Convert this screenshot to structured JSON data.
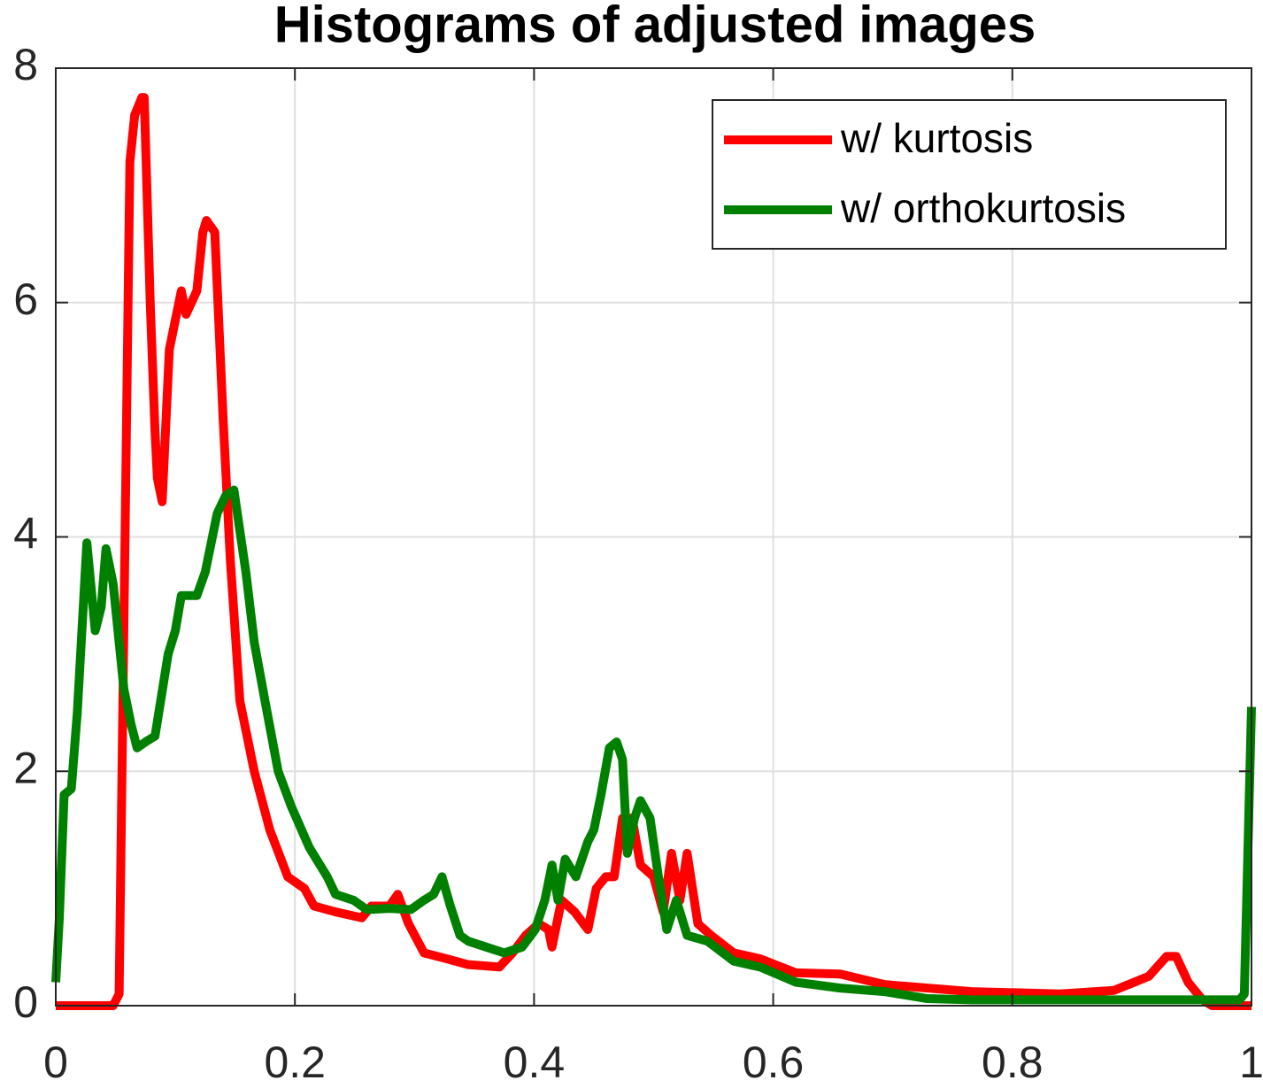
{
  "chart_data": {
    "type": "line",
    "title": "Histograms of adjusted images",
    "xlim": [
      0,
      1
    ],
    "ylim": [
      0,
      8
    ],
    "xticks": [
      0,
      0.2,
      0.4,
      0.6,
      0.8,
      1
    ],
    "yticks": [
      0,
      2,
      4,
      6,
      8
    ],
    "grid": true,
    "legend": "northeast",
    "series": [
      {
        "name": "w/ kurtosis",
        "color": "#ff0000",
        "x": [
          0,
          0.048,
          0.053,
          0.062,
          0.066,
          0.072,
          0.074,
          0.079,
          0.083,
          0.085,
          0.089,
          0.095,
          0.105,
          0.109,
          0.118,
          0.123,
          0.126,
          0.133,
          0.14,
          0.146,
          0.154,
          0.166,
          0.179,
          0.194,
          0.208,
          0.216,
          0.234,
          0.256,
          0.264,
          0.279,
          0.286,
          0.295,
          0.308,
          0.327,
          0.345,
          0.371,
          0.382,
          0.393,
          0.404,
          0.412,
          0.415,
          0.423,
          0.434,
          0.445,
          0.452,
          0.46,
          0.467,
          0.474,
          0.482,
          0.489,
          0.5,
          0.508,
          0.515,
          0.522,
          0.528,
          0.537,
          0.548,
          0.567,
          0.589,
          0.619,
          0.656,
          0.693,
          0.729,
          0.766,
          0.84,
          0.885,
          0.914,
          0.929,
          0.937,
          0.947,
          0.959,
          0.967,
          1
        ],
        "values": [
          0,
          0,
          0.1,
          7.2,
          7.6,
          7.75,
          7.75,
          6.0,
          4.9,
          4.5,
          4.3,
          5.6,
          6.1,
          5.9,
          6.1,
          6.6,
          6.7,
          6.6,
          5.0,
          3.8,
          2.6,
          2.0,
          1.5,
          1.1,
          1.0,
          0.85,
          0.8,
          0.75,
          0.85,
          0.85,
          0.95,
          0.7,
          0.45,
          0.4,
          0.35,
          0.33,
          0.45,
          0.6,
          0.7,
          0.65,
          0.5,
          0.9,
          0.8,
          0.65,
          1.0,
          1.1,
          1.1,
          1.6,
          1.6,
          1.2,
          1.1,
          0.8,
          1.3,
          0.9,
          1.3,
          0.7,
          0.6,
          0.45,
          0.4,
          0.28,
          0.27,
          0.18,
          0.15,
          0.12,
          0.1,
          0.13,
          0.25,
          0.42,
          0.42,
          0.2,
          0.05,
          0,
          0
        ]
      },
      {
        "name": "w/ orthokurtosis",
        "color": "#008000",
        "x": [
          0,
          0.003,
          0.007,
          0.013,
          0.018,
          0.026,
          0.033,
          0.038,
          0.042,
          0.048,
          0.057,
          0.063,
          0.068,
          0.075,
          0.083,
          0.094,
          0.1,
          0.105,
          0.112,
          0.118,
          0.125,
          0.135,
          0.142,
          0.149,
          0.159,
          0.166,
          0.175,
          0.186,
          0.197,
          0.212,
          0.227,
          0.234,
          0.249,
          0.26,
          0.279,
          0.297,
          0.308,
          0.316,
          0.323,
          0.33,
          0.338,
          0.345,
          0.36,
          0.375,
          0.39,
          0.401,
          0.409,
          0.415,
          0.42,
          0.426,
          0.435,
          0.445,
          0.45,
          0.456,
          0.463,
          0.469,
          0.474,
          0.478,
          0.484,
          0.489,
          0.497,
          0.504,
          0.511,
          0.519,
          0.528,
          0.545,
          0.567,
          0.589,
          0.619,
          0.656,
          0.693,
          0.729,
          0.766,
          0.84,
          0.914,
          0.99,
          0.994,
          1
        ],
        "values": [
          0.2,
          0.75,
          1.8,
          1.85,
          2.5,
          3.95,
          3.2,
          3.4,
          3.9,
          3.6,
          2.7,
          2.4,
          2.2,
          2.25,
          2.3,
          3.0,
          3.2,
          3.5,
          3.5,
          3.5,
          3.7,
          4.2,
          4.35,
          4.4,
          3.7,
          3.1,
          2.6,
          2.0,
          1.7,
          1.35,
          1.1,
          0.95,
          0.9,
          0.82,
          0.83,
          0.82,
          0.9,
          0.95,
          1.1,
          0.85,
          0.6,
          0.55,
          0.5,
          0.45,
          0.5,
          0.65,
          0.9,
          1.2,
          0.9,
          1.25,
          1.1,
          1.4,
          1.5,
          1.8,
          2.2,
          2.25,
          2.1,
          1.3,
          1.6,
          1.75,
          1.6,
          1.1,
          0.65,
          0.9,
          0.6,
          0.55,
          0.38,
          0.33,
          0.2,
          0.15,
          0.12,
          0.06,
          0.05,
          0.05,
          0.05,
          0.05,
          0.1,
          2.55
        ]
      }
    ]
  }
}
